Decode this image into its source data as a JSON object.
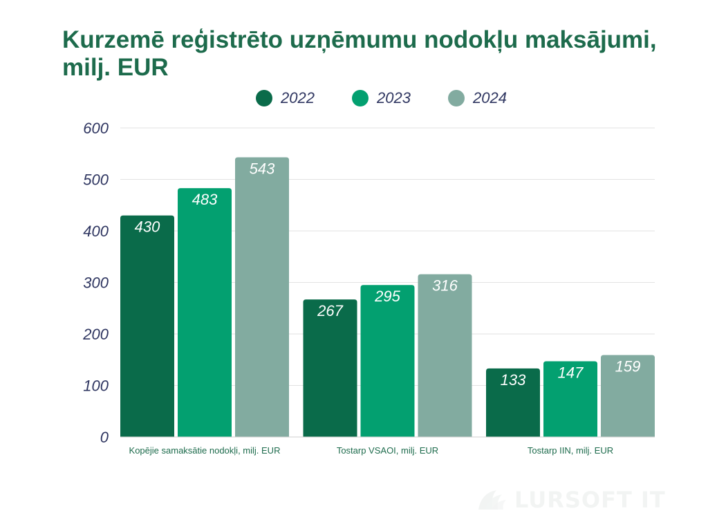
{
  "title": "Kurzemē reģistrēto uzņēmumu nodokļu maksājumi, milj. EUR",
  "brand": "LURSOFT IT",
  "chart_data": {
    "type": "bar",
    "title": "Kurzemē reģistrēto uzņēmumu nodokļu maksājumi, milj. EUR",
    "categories": [
      "Kopējie samaksātie nodokļi, milj. EUR",
      "Tostarp VSAOI, milj. EUR",
      "Tostarp IIN, milj. EUR"
    ],
    "series": [
      {
        "name": "2022",
        "color": "#0a6b4a",
        "values": [
          430,
          267,
          133
        ]
      },
      {
        "name": "2023",
        "color": "#03a070",
        "values": [
          483,
          295,
          147
        ]
      },
      {
        "name": "2024",
        "color": "#82aba0",
        "values": [
          543,
          316,
          159
        ]
      }
    ],
    "yticks": [
      "0",
      "100",
      "200",
      "300",
      "400",
      "500",
      "600"
    ],
    "ylim": [
      0,
      600
    ],
    "grid": true,
    "legend": "top"
  }
}
